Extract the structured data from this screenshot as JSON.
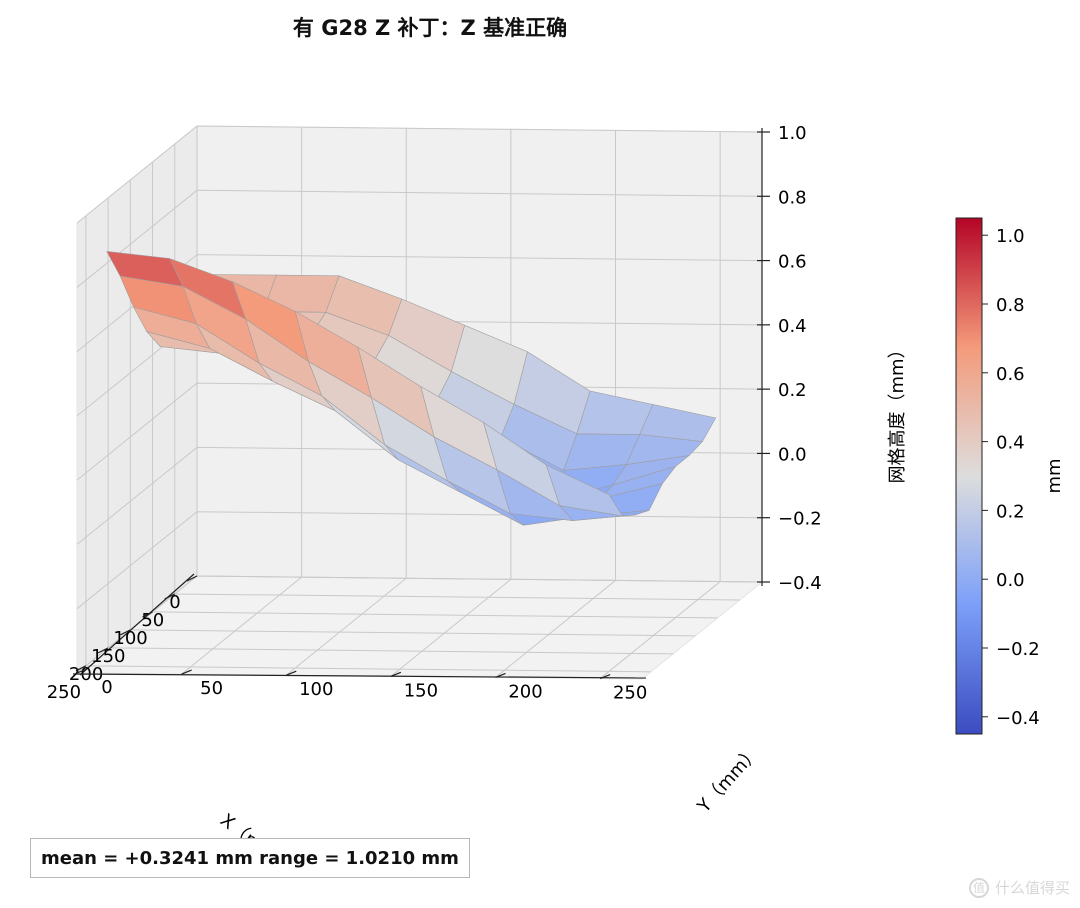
{
  "title": "有 G28 Z 补丁：Z 基准正确",
  "stats_text": "mean = +0.3241 mm   range = 1.0210 mm",
  "watermark": "什么值得买",
  "chart_data": {
    "type": "surface3d",
    "colormap": "coolwarm",
    "xlabel": "X（mm）",
    "ylabel": "Y（mm）",
    "zlabel": "网格高度（mm）",
    "colorbar_label": "mm",
    "x_ticks": [
      0,
      50,
      100,
      150,
      200,
      250
    ],
    "y_ticks": [
      0,
      50,
      100,
      150,
      200,
      250
    ],
    "z_ticks": [
      "-0.4",
      "-0.2",
      "0.0",
      "0.2",
      "0.4",
      "0.6",
      "0.8",
      "1.0"
    ],
    "colorbar_ticks": [
      "-0.4",
      "-0.2",
      "0.0",
      "0.2",
      "0.4",
      "0.6",
      "0.8",
      "1.0"
    ],
    "xlim": [
      0,
      270
    ],
    "ylim": [
      0,
      270
    ],
    "zlim": [
      -0.4,
      1.0
    ],
    "color_range": [
      -0.45,
      1.05
    ],
    "x": [
      10,
      40,
      70,
      100,
      130,
      160,
      190,
      220,
      250
    ],
    "y": [
      10,
      40,
      70,
      100,
      130,
      160,
      190,
      220,
      250
    ],
    "z": [
      [
        0.55,
        0.55,
        0.55,
        0.48,
        0.4,
        0.32,
        0.2,
        0.16,
        0.12
      ],
      [
        0.47,
        0.47,
        0.47,
        0.4,
        0.29,
        0.19,
        0.1,
        0.1,
        0.08
      ],
      [
        0.45,
        0.44,
        0.44,
        0.36,
        0.24,
        0.12,
        0.02,
        0.04,
        0.07
      ],
      [
        0.44,
        0.42,
        0.4,
        0.31,
        0.16,
        0.04,
        -0.04,
        0.01,
        0.07
      ],
      [
        0.46,
        0.44,
        0.37,
        0.28,
        0.12,
        0.03,
        -0.04,
        0.0,
        0.05
      ],
      [
        0.54,
        0.49,
        0.39,
        0.3,
        0.15,
        0.05,
        -0.05,
        -0.02,
        0.0
      ],
      [
        0.65,
        0.6,
        0.48,
        0.38,
        0.23,
        0.12,
        0.02,
        0.0,
        0.02
      ],
      [
        0.78,
        0.75,
        0.65,
        0.52,
        0.41,
        0.29,
        0.19,
        0.08,
        0.05
      ],
      [
        0.89,
        0.87,
        0.8,
        0.71,
        0.6,
        0.48,
        0.37,
        0.24,
        0.15
      ]
    ]
  }
}
